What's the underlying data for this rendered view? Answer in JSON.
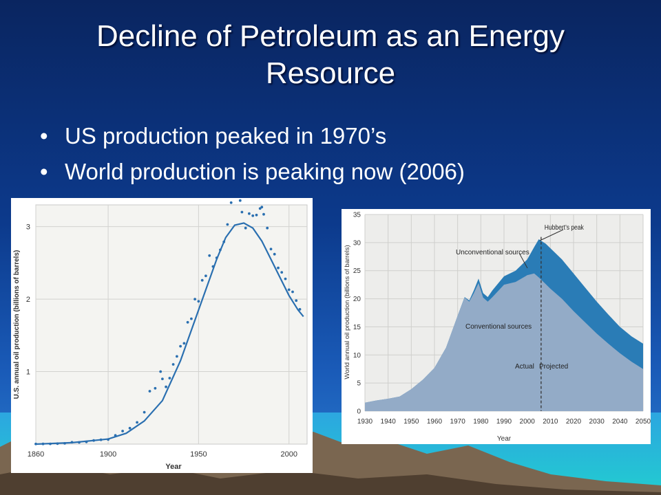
{
  "slide": {
    "title_line1": "Decline of Petroleum as an Energy",
    "title_line2": "Resource",
    "bullets": [
      "US production peaked in 1970’s",
      "World production is peaking now (2006)"
    ]
  },
  "colors": {
    "background": "#0c3a8c",
    "us_line": "#2a6fb0",
    "conventional": "#93abc7",
    "unconventional": "#2a7cb6"
  },
  "chart_data": [
    {
      "type": "scatter",
      "title": "",
      "xlabel": "Year",
      "ylabel": "U.S. annual oil production (billions of barrels)",
      "xlim": [
        1860,
        2010
      ],
      "ylim": [
        0,
        3.3
      ],
      "xticks": [
        "1860",
        "1900",
        "1950",
        "2000"
      ],
      "yticks": [
        "1",
        "2",
        "3"
      ],
      "grid": true,
      "series": [
        {
          "name": "",
          "kind": "points",
          "x": [
            1860,
            1864,
            1868,
            1872,
            1876,
            1880,
            1884,
            1888,
            1892,
            1896,
            1900,
            1904,
            1908,
            1912,
            1916,
            1920,
            1923,
            1926,
            1929,
            1930,
            1932,
            1934,
            1936,
            1938,
            1940,
            1942,
            1944,
            1946,
            1948,
            1950,
            1952,
            1954,
            1956,
            1958,
            1960,
            1962,
            1964,
            1966,
            1968,
            1970,
            1971,
            1972,
            1973,
            1974,
            1976,
            1978,
            1980,
            1982,
            1984,
            1985,
            1986,
            1988,
            1990,
            1992,
            1994,
            1996,
            1998,
            2000,
            2002,
            2004,
            2006
          ],
          "y": [
            0.002,
            0.003,
            0.004,
            0.007,
            0.01,
            0.026,
            0.024,
            0.03,
            0.05,
            0.06,
            0.064,
            0.12,
            0.18,
            0.22,
            0.3,
            0.44,
            0.73,
            0.77,
            1.0,
            0.9,
            0.79,
            0.91,
            1.1,
            1.21,
            1.35,
            1.39,
            1.68,
            1.73,
            2.0,
            1.97,
            2.26,
            2.32,
            2.6,
            2.45,
            2.57,
            2.68,
            2.79,
            3.03,
            3.33,
            3.52,
            3.45,
            3.46,
            3.36,
            3.2,
            2.98,
            3.18,
            3.15,
            3.16,
            3.25,
            3.27,
            3.17,
            2.98,
            2.69,
            2.62,
            2.43,
            2.37,
            2.28,
            2.13,
            2.1,
            1.98,
            1.86
          ]
        },
        {
          "name": "",
          "kind": "fitted curve",
          "x": [
            1860,
            1880,
            1900,
            1910,
            1920,
            1930,
            1940,
            1950,
            1960,
            1965,
            1970,
            1975,
            1980,
            1985,
            1990,
            1995,
            2000,
            2005,
            2008
          ],
          "y": [
            0.0,
            0.02,
            0.07,
            0.15,
            0.32,
            0.6,
            1.15,
            1.85,
            2.55,
            2.85,
            3.02,
            3.05,
            2.98,
            2.8,
            2.55,
            2.3,
            2.05,
            1.85,
            1.76
          ]
        }
      ]
    },
    {
      "type": "area",
      "title": "",
      "xlabel": "Year",
      "ylabel": "World annual oil production (billions of barrels)",
      "xlim": [
        1930,
        2050
      ],
      "ylim": [
        0,
        35
      ],
      "xticks": [
        "1930",
        "1940",
        "1950",
        "1960",
        "1970",
        "1980",
        "1990",
        "2000",
        "2010",
        "2020",
        "2030",
        "2040",
        "2050"
      ],
      "yticks": [
        "0",
        "5",
        "10",
        "15",
        "20",
        "25",
        "30",
        "35"
      ],
      "grid": true,
      "x": [
        1930,
        1935,
        1940,
        1945,
        1950,
        1955,
        1960,
        1965,
        1970,
        1973,
        1975,
        1977,
        1979,
        1981,
        1983,
        1985,
        1990,
        1995,
        2000,
        2003,
        2005,
        2008,
        2010,
        2015,
        2020,
        2025,
        2030,
        2035,
        2040,
        2045,
        2050
      ],
      "series": [
        {
          "name": "Conventional sources",
          "values": [
            1.5,
            1.9,
            2.2,
            2.6,
            3.9,
            5.6,
            7.7,
            11.3,
            17.0,
            20.2,
            19.5,
            21.0,
            22.8,
            20.2,
            19.5,
            20.3,
            22.5,
            23.0,
            24.2,
            24.5,
            23.8,
            22.6,
            21.8,
            20.0,
            17.8,
            15.8,
            13.8,
            12.0,
            10.3,
            8.8,
            7.5
          ]
        },
        {
          "name": "Unconventional sources",
          "values": [
            1.5,
            1.9,
            2.2,
            2.6,
            3.9,
            5.6,
            7.7,
            11.3,
            17.0,
            20.3,
            19.7,
            21.5,
            23.6,
            21.0,
            20.3,
            21.5,
            24.0,
            25.0,
            27.0,
            29.2,
            30.6,
            29.8,
            29.0,
            27.0,
            24.5,
            22.0,
            19.5,
            17.2,
            15.0,
            13.3,
            12.0
          ]
        }
      ],
      "annotations": [
        "Hubbert’s peak",
        "Unconventional sources",
        "Conventional sources",
        "Actual",
        "Projected"
      ],
      "divider_year": 2006
    }
  ]
}
